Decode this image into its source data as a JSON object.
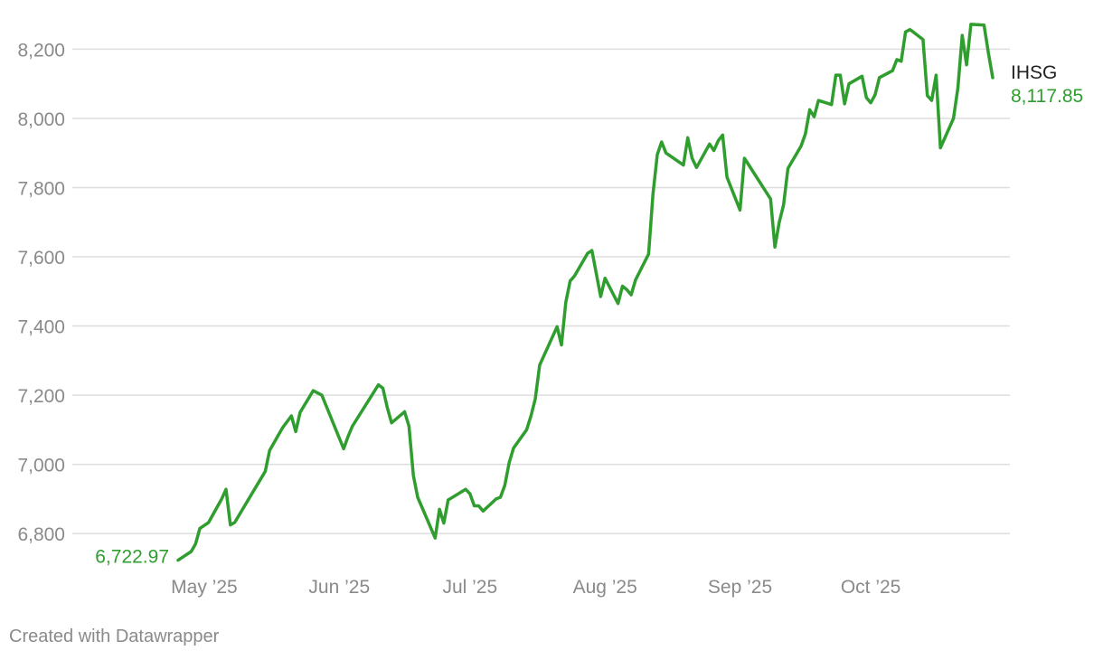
{
  "chart_data": {
    "type": "line",
    "series": [
      {
        "name": "IHSG",
        "color": "#2f9e2f",
        "start_label": "6,722.97",
        "end_label": "8,117.85",
        "points": [
          [
            "2025-04-25",
            6722.97
          ],
          [
            "2025-04-28",
            6748
          ],
          [
            "2025-04-29",
            6770
          ],
          [
            "2025-04-30",
            6815
          ],
          [
            "2025-05-02",
            6832
          ],
          [
            "2025-05-05",
            6900
          ],
          [
            "2025-05-06",
            6928
          ],
          [
            "2025-05-07",
            6825
          ],
          [
            "2025-05-08",
            6832
          ],
          [
            "2025-05-15",
            6980
          ],
          [
            "2025-05-16",
            7040
          ],
          [
            "2025-05-19",
            7106
          ],
          [
            "2025-05-21",
            7140
          ],
          [
            "2025-05-22",
            7095
          ],
          [
            "2025-05-23",
            7150
          ],
          [
            "2025-05-26",
            7213
          ],
          [
            "2025-05-28",
            7200
          ],
          [
            "2025-06-02",
            7045
          ],
          [
            "2025-06-03",
            7080
          ],
          [
            "2025-06-04",
            7110
          ],
          [
            "2025-06-10",
            7230
          ],
          [
            "2025-06-11",
            7220
          ],
          [
            "2025-06-12",
            7165
          ],
          [
            "2025-06-13",
            7120
          ],
          [
            "2025-06-16",
            7152
          ],
          [
            "2025-06-17",
            7110
          ],
          [
            "2025-06-18",
            6968
          ],
          [
            "2025-06-19",
            6905
          ],
          [
            "2025-06-23",
            6787
          ],
          [
            "2025-06-24",
            6870
          ],
          [
            "2025-06-25",
            6830
          ],
          [
            "2025-06-26",
            6897
          ],
          [
            "2025-06-30",
            6928
          ],
          [
            "2025-07-01",
            6915
          ],
          [
            "2025-07-02",
            6880
          ],
          [
            "2025-07-03",
            6880
          ],
          [
            "2025-07-04",
            6865
          ],
          [
            "2025-07-07",
            6900
          ],
          [
            "2025-07-08",
            6905
          ],
          [
            "2025-07-09",
            6940
          ],
          [
            "2025-07-10",
            7005
          ],
          [
            "2025-07-11",
            7047
          ],
          [
            "2025-07-14",
            7100
          ],
          [
            "2025-07-15",
            7140
          ],
          [
            "2025-07-16",
            7190
          ],
          [
            "2025-07-17",
            7287
          ],
          [
            "2025-07-21",
            7398
          ],
          [
            "2025-07-22",
            7345
          ],
          [
            "2025-07-23",
            7468
          ],
          [
            "2025-07-24",
            7530
          ],
          [
            "2025-07-25",
            7545
          ],
          [
            "2025-07-28",
            7610
          ],
          [
            "2025-07-29",
            7618
          ],
          [
            "2025-07-31",
            7485
          ],
          [
            "2025-08-01",
            7538
          ],
          [
            "2025-08-04",
            7465
          ],
          [
            "2025-08-05",
            7515
          ],
          [
            "2025-08-06",
            7505
          ],
          [
            "2025-08-07",
            7490
          ],
          [
            "2025-08-08",
            7533
          ],
          [
            "2025-08-11",
            7608
          ],
          [
            "2025-08-12",
            7780
          ],
          [
            "2025-08-13",
            7895
          ],
          [
            "2025-08-14",
            7932
          ],
          [
            "2025-08-15",
            7900
          ],
          [
            "2025-08-19",
            7865
          ],
          [
            "2025-08-20",
            7944
          ],
          [
            "2025-08-21",
            7885
          ],
          [
            "2025-08-22",
            7858
          ],
          [
            "2025-08-25",
            7926
          ],
          [
            "2025-08-26",
            7907
          ],
          [
            "2025-08-27",
            7936
          ],
          [
            "2025-08-28",
            7952
          ],
          [
            "2025-08-29",
            7830
          ],
          [
            "2025-09-01",
            7735
          ],
          [
            "2025-09-02",
            7885
          ],
          [
            "2025-09-08",
            7767
          ],
          [
            "2025-09-09",
            7628
          ],
          [
            "2025-09-10",
            7700
          ],
          [
            "2025-09-11",
            7750
          ],
          [
            "2025-09-12",
            7855
          ],
          [
            "2025-09-15",
            7920
          ],
          [
            "2025-09-16",
            7955
          ],
          [
            "2025-09-17",
            8025
          ],
          [
            "2025-09-18",
            8005
          ],
          [
            "2025-09-19",
            8052
          ],
          [
            "2025-09-22",
            8040
          ],
          [
            "2025-09-23",
            8125
          ],
          [
            "2025-09-24",
            8125
          ],
          [
            "2025-09-25",
            8042
          ],
          [
            "2025-09-26",
            8100
          ],
          [
            "2025-09-29",
            8122
          ],
          [
            "2025-09-30",
            8060
          ],
          [
            "2025-10-01",
            8045
          ],
          [
            "2025-10-02",
            8068
          ],
          [
            "2025-10-03",
            8118
          ],
          [
            "2025-10-06",
            8138
          ],
          [
            "2025-10-07",
            8170
          ],
          [
            "2025-10-08",
            8165
          ],
          [
            "2025-10-09",
            8250
          ],
          [
            "2025-10-10",
            8257
          ],
          [
            "2025-10-13",
            8228
          ],
          [
            "2025-10-14",
            8066
          ],
          [
            "2025-10-15",
            8052
          ],
          [
            "2025-10-16",
            8125
          ],
          [
            "2025-10-17",
            7915
          ],
          [
            "2025-10-20",
            8000
          ],
          [
            "2025-10-21",
            8088
          ],
          [
            "2025-10-22",
            8240
          ],
          [
            "2025-10-23",
            8155
          ],
          [
            "2025-10-24",
            8272
          ],
          [
            "2025-10-27",
            8270
          ],
          [
            "2025-10-28",
            8190
          ],
          [
            "2025-10-29",
            8117.85
          ]
        ]
      }
    ],
    "y_ticks": [
      6800,
      7000,
      7200,
      7400,
      7600,
      7800,
      8000,
      8200
    ],
    "y_tick_labels": [
      "6,800",
      "7,000",
      "7,200",
      "7,400",
      "7,600",
      "7,800",
      "8,000",
      "8,200"
    ],
    "ylim": [
      6735,
      8290
    ],
    "x_ticks": [
      "2025-05-01",
      "2025-06-01",
      "2025-07-01",
      "2025-08-01",
      "2025-09-01",
      "2025-10-01"
    ],
    "x_tick_labels": [
      "May ’25",
      "Jun ’25",
      "Jul ’25",
      "Aug ’25",
      "Sep ’25",
      "Oct ’25"
    ],
    "xlim": [
      "2025-04-25",
      "2025-10-29"
    ],
    "grid": true,
    "gridline_color": "#dddddd",
    "text_color": "#8a8a8a"
  },
  "footer": {
    "credit": "Created with Datawrapper"
  }
}
